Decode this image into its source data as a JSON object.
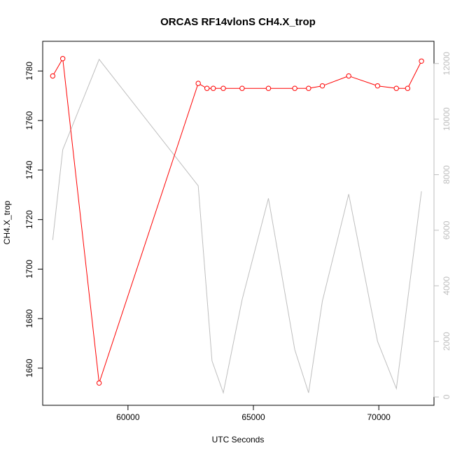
{
  "chart_data": {
    "type": "line",
    "title": "ORCAS RF14vlonS CH4.X_trop",
    "xlabel": "UTC Seconds",
    "ylabel": "CH4.X_trop",
    "xlim": [
      56600,
      72200
    ],
    "ylim_left": [
      1645,
      1792
    ],
    "ylim_right": [
      -300,
      12800
    ],
    "x_ticks": [
      60000,
      65000,
      70000
    ],
    "y_ticks_left": [
      1660,
      1680,
      1700,
      1720,
      1740,
      1760,
      1780
    ],
    "y_ticks_right": [
      0,
      2000,
      4000,
      6000,
      8000,
      10000,
      12000
    ],
    "series": [
      {
        "axis": "left",
        "color": "#ff0000",
        "markers": true,
        "x": [
          57000,
          57400,
          58850,
          62800,
          63150,
          63400,
          63800,
          64550,
          65600,
          66650,
          67200,
          67750,
          68800,
          69950,
          70700,
          71150,
          71700
        ],
        "y": [
          1778,
          1785,
          1654,
          1775,
          1773,
          1773,
          1773,
          1773,
          1773,
          1773,
          1773,
          1774,
          1778,
          1774,
          1773,
          1773,
          1784
        ]
      },
      {
        "axis": "right",
        "color": "#bebebe",
        "markers": false,
        "x": [
          57000,
          57400,
          58850,
          62800,
          63350,
          63800,
          64550,
          65600,
          66650,
          67200,
          67750,
          68800,
          69950,
          70700,
          71700
        ],
        "y": [
          5650,
          8900,
          12150,
          7600,
          1300,
          150,
          3500,
          7150,
          1700,
          150,
          3450,
          7300,
          2000,
          300,
          7400
        ]
      }
    ]
  }
}
